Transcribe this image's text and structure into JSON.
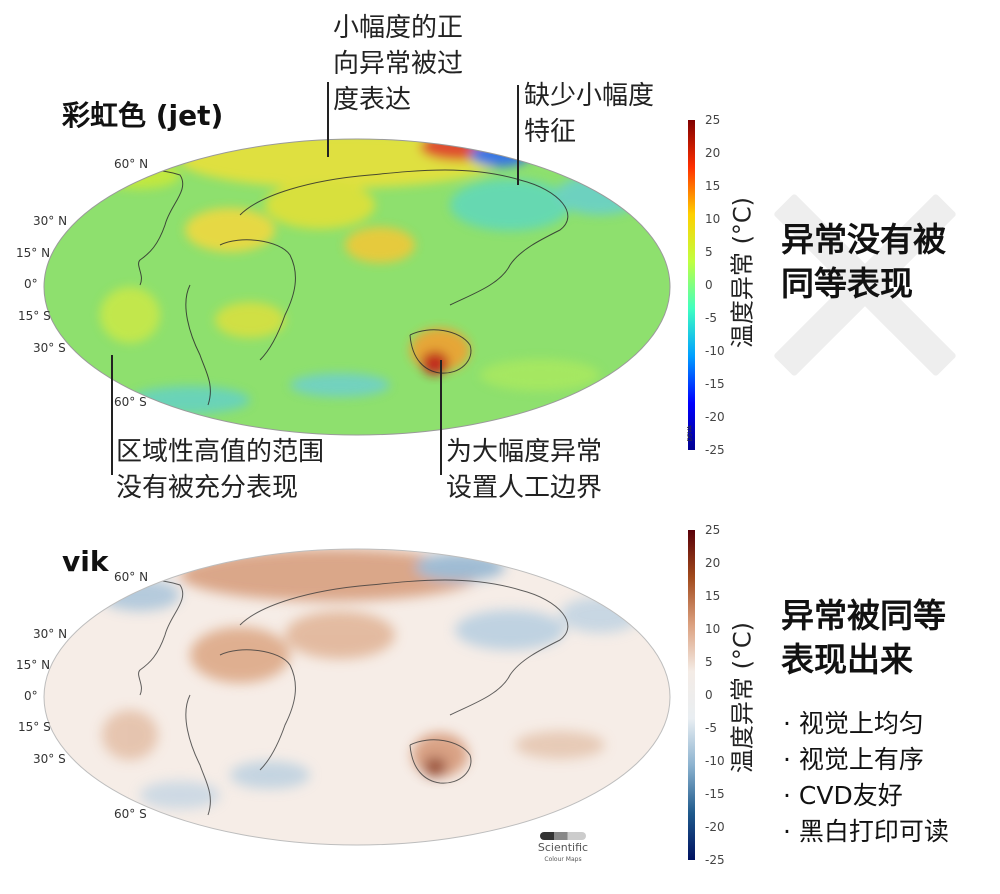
{
  "panels": [
    {
      "label": "彩虹色 (jet)",
      "colormap": "jet",
      "verdict": "异常没有被\n同等表现",
      "colorbar": {
        "title": "温度异常 (°C)",
        "ticks": [
          25,
          20,
          15,
          10,
          5,
          0,
          -5,
          -10,
          -15,
          -20,
          -25
        ]
      },
      "lat_labels": [
        "60° N",
        "30° N",
        "15° N",
        "0°",
        "15° S",
        "30° S",
        "60° S"
      ],
      "annotations": [
        "小幅度的正\n向异常被过\n度表达",
        "缺少小幅度\n特征",
        "区域性高值的范围\n没有被充分表现",
        "为大幅度异常\n设置人工边界"
      ],
      "colorbar_corner_mark": "DSVA"
    },
    {
      "label": "vik",
      "colormap": "vik",
      "verdict": "异常被同等\n表现出来",
      "colorbar": {
        "title": "温度异常 (°C)",
        "ticks": [
          25,
          20,
          15,
          10,
          5,
          0,
          -5,
          -10,
          -15,
          -20,
          -25
        ]
      },
      "lat_labels": [
        "60° N",
        "30° N",
        "15° N",
        "0°",
        "15° S",
        "30° S",
        "60° S"
      ],
      "bullets": [
        "· 视觉上均匀",
        "· 视觉上有序",
        "· CVD友好",
        "· 黑白打印可读"
      ],
      "credit": [
        "Scientific",
        "Colour Maps"
      ]
    }
  ],
  "colors": {
    "jet": [
      "#00008f",
      "#0000ff",
      "#00a0ff",
      "#40ffc0",
      "#c0ff40",
      "#ffd000",
      "#ff3000",
      "#800000"
    ],
    "vik": [
      "#001261",
      "#1f5a8c",
      "#8bb2cf",
      "#e9eef2",
      "#f4ece6",
      "#dba07f",
      "#a14a1c",
      "#590008"
    ],
    "jet_ocean": "#8be26f",
    "vik_ocean": "#f7efe9",
    "cross": "#eeeeee"
  }
}
